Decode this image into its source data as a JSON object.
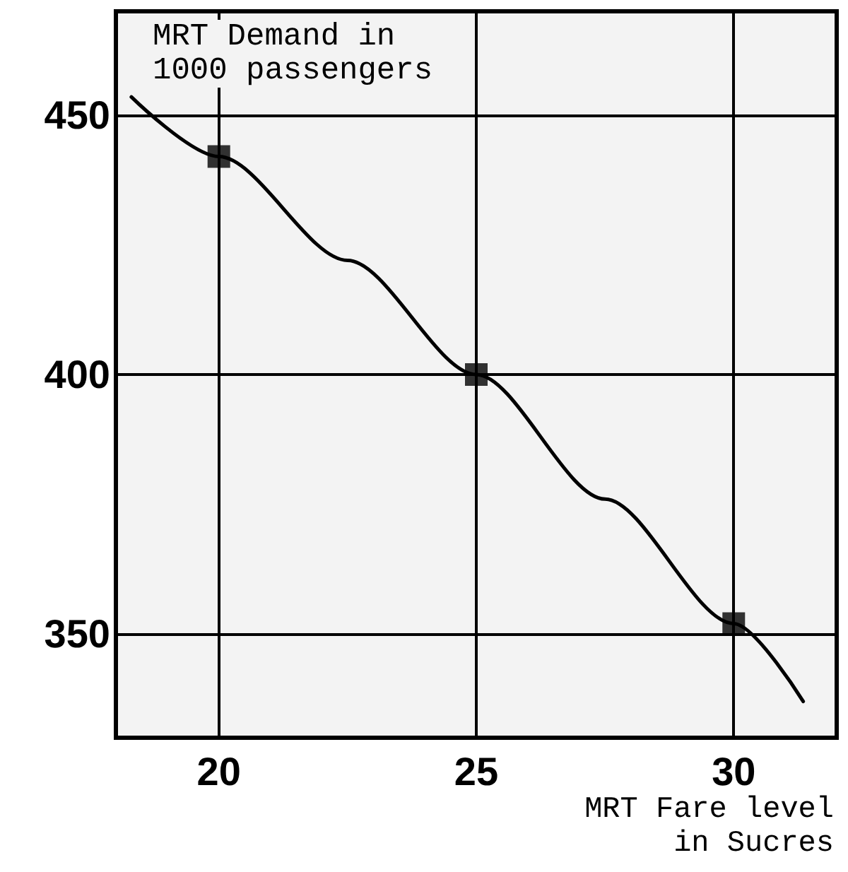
{
  "chart_data": {
    "type": "line",
    "xlabel": "MRT Fare level\nin Sucres",
    "ylabel": "MRT Demand in\n1000 passengers",
    "xlim": [
      18,
      32
    ],
    "xticks": [
      20,
      25,
      30
    ],
    "ylim": [
      330,
      470
    ],
    "yticks": [
      350,
      400,
      450
    ],
    "grid": true,
    "series": [
      {
        "color": "#000000",
        "marker": "none",
        "line_style": "solid",
        "x": [
          18.3,
          20,
          22.5,
          25,
          27.5,
          30,
          31.35
        ],
        "values": [
          453.5,
          442,
          422,
          400,
          376,
          352,
          337
        ]
      },
      {
        "type": "scatter",
        "color": "#000000",
        "marker": "square",
        "x": [
          20,
          25,
          30
        ],
        "values": [
          442,
          400,
          352
        ]
      }
    ]
  }
}
